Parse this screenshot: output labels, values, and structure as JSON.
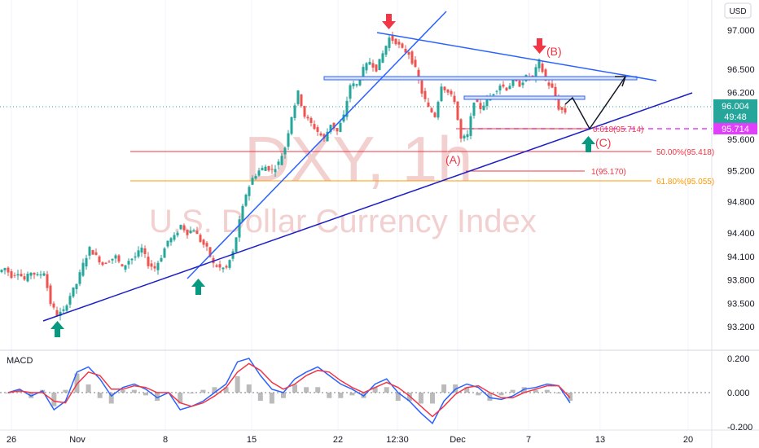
{
  "currency_button": "USD",
  "watermark": {
    "symbol": "DXY, 1h",
    "name": "U.S. Dollar Currency Index"
  },
  "price_axis": {
    "ticks": [
      "97.000",
      "96.500",
      "96.200",
      "95.600",
      "95.200",
      "94.800",
      "94.400",
      "94.100",
      "93.800",
      "93.500",
      "93.200"
    ]
  },
  "time_axis": {
    "ticks": [
      "26",
      "Nov",
      "8",
      "15",
      "22",
      "12:30",
      "Dec",
      "7",
      "13",
      "20"
    ]
  },
  "price_badges": {
    "last_price": "96.004",
    "countdown": "49:48",
    "level_badge": "95.714"
  },
  "annotations": {
    "wave_b": "(B)",
    "wave_a": "(A)",
    "wave_c": "(C)",
    "fib_618": "0.618(95.714)",
    "fib_50": "50.00%(95.418)",
    "fib_1": "1(95.170)",
    "fib_618_pct": "61.80%(95.055)"
  },
  "macd": {
    "title": "MACD",
    "ticks": [
      "0.200",
      "0.000",
      "-0.200"
    ]
  },
  "colors": {
    "up_candle": "#26a69a",
    "down_candle": "#ef5350",
    "trendline": "#2962ff",
    "pink_level": "#e040fb",
    "fib_red": "#f23645",
    "fib_orange": "#ff9800",
    "arrow_up": "#089981",
    "arrow_down": "#f23645"
  },
  "chart_data": {
    "type": "candlestick",
    "title": "U.S. Dollar Currency Index",
    "symbol": "DXY",
    "timeframe": "1h",
    "ylim": [
      93.0,
      97.2
    ],
    "x_ticks": [
      "26",
      "Nov",
      "8",
      "15",
      "22",
      "12:30",
      "Dec",
      "7",
      "13",
      "20"
    ],
    "y_ticks": [
      97.0,
      96.5,
      96.2,
      95.6,
      95.2,
      94.8,
      94.4,
      94.1,
      93.8,
      93.5,
      93.2
    ],
    "last_price": 96.004,
    "levels": [
      {
        "label": "0.618(95.714)",
        "value": 95.714
      },
      {
        "label": "50.00%(95.418)",
        "value": 95.418
      },
      {
        "label": "1(95.170)",
        "value": 95.17
      },
      {
        "label": "61.80%(95.055)",
        "value": 95.055
      }
    ],
    "close_path": [
      [
        0,
        93.9
      ],
      [
        1,
        93.95
      ],
      [
        2,
        93.85
      ],
      [
        3,
        93.9
      ],
      [
        4,
        93.8
      ],
      [
        5,
        93.9
      ],
      [
        6,
        93.85
      ],
      [
        7,
        93.9
      ],
      [
        8,
        93.5
      ],
      [
        9,
        93.35
      ],
      [
        10,
        93.4
      ],
      [
        11,
        93.6
      ],
      [
        12,
        93.75
      ],
      [
        13,
        94.0
      ],
      [
        14,
        94.2
      ],
      [
        15,
        94.1
      ],
      [
        16,
        94.0
      ],
      [
        17,
        94.05
      ],
      [
        18,
        94.1
      ],
      [
        19,
        93.95
      ],
      [
        20,
        94.05
      ],
      [
        21,
        94.1
      ],
      [
        22,
        94.2
      ],
      [
        23,
        94.0
      ],
      [
        24,
        93.95
      ],
      [
        25,
        94.1
      ],
      [
        26,
        94.3
      ],
      [
        27,
        94.35
      ],
      [
        28,
        94.5
      ],
      [
        29,
        94.4
      ],
      [
        30,
        94.45
      ],
      [
        31,
        94.3
      ],
      [
        32,
        94.2
      ],
      [
        33,
        94.0
      ],
      [
        34,
        93.95
      ],
      [
        35,
        93.95
      ],
      [
        36,
        94.15
      ],
      [
        37,
        94.55
      ],
      [
        38,
        94.9
      ],
      [
        39,
        95.1
      ],
      [
        40,
        95.2
      ],
      [
        41,
        95.25
      ],
      [
        42,
        95.2
      ],
      [
        43,
        95.3
      ],
      [
        44,
        95.5
      ],
      [
        45,
        95.9
      ],
      [
        46,
        96.2
      ],
      [
        47,
        95.9
      ],
      [
        48,
        95.8
      ],
      [
        49,
        95.7
      ],
      [
        50,
        95.6
      ],
      [
        51,
        95.8
      ],
      [
        52,
        95.7
      ],
      [
        53,
        95.9
      ],
      [
        54,
        96.3
      ],
      [
        55,
        96.3
      ],
      [
        56,
        96.5
      ],
      [
        57,
        96.6
      ],
      [
        58,
        96.5
      ],
      [
        59,
        96.7
      ],
      [
        60,
        96.9
      ],
      [
        61,
        96.85
      ],
      [
        62,
        96.75
      ],
      [
        63,
        96.7
      ],
      [
        64,
        96.5
      ],
      [
        65,
        96.2
      ],
      [
        66,
        96.0
      ],
      [
        67,
        95.9
      ],
      [
        68,
        96.3
      ],
      [
        69,
        96.2
      ],
      [
        70,
        96.1
      ],
      [
        71,
        95.6
      ],
      [
        72,
        95.65
      ],
      [
        73,
        96.1
      ],
      [
        74,
        96.0
      ],
      [
        75,
        96.1
      ],
      [
        76,
        96.2
      ],
      [
        77,
        96.3
      ],
      [
        78,
        96.25
      ],
      [
        79,
        96.35
      ],
      [
        80,
        96.3
      ],
      [
        81,
        96.4
      ],
      [
        82,
        96.4
      ],
      [
        83,
        96.6
      ],
      [
        84,
        96.35
      ],
      [
        85,
        96.25
      ],
      [
        86,
        96.0
      ],
      [
        87,
        95.95
      ]
    ],
    "projection": [
      [
        88,
        96.1
      ],
      [
        89,
        95.714
      ],
      [
        90,
        96.4
      ]
    ],
    "macd_series": [
      {
        "name": "MACD",
        "values": [
          0.0,
          0.02,
          -0.02,
          0.01,
          -0.1,
          -0.05,
          0.12,
          0.15,
          0.08,
          -0.02,
          0.03,
          0.05,
          0.02,
          -0.03,
          0.0,
          -0.1,
          -0.08,
          -0.05,
          0.0,
          0.05,
          0.18,
          0.2,
          0.1,
          0.02,
          0.0,
          0.08,
          0.12,
          0.15,
          0.1,
          0.05,
          0.02,
          -0.02,
          0.05,
          0.08,
          0.0,
          -0.05,
          -0.12,
          -0.18,
          -0.05,
          0.02,
          0.05,
          0.03,
          -0.03,
          -0.04,
          -0.02,
          0.02,
          0.03,
          0.05,
          0.04,
          -0.06
        ]
      },
      {
        "name": "Signal",
        "values": [
          0.0,
          0.01,
          0.0,
          0.0,
          -0.05,
          -0.06,
          0.05,
          0.12,
          0.1,
          0.02,
          0.02,
          0.04,
          0.03,
          0.0,
          0.0,
          -0.06,
          -0.08,
          -0.06,
          -0.02,
          0.03,
          0.12,
          0.17,
          0.13,
          0.06,
          0.02,
          0.05,
          0.1,
          0.13,
          0.12,
          0.07,
          0.03,
          0.0,
          0.03,
          0.06,
          0.03,
          -0.02,
          -0.08,
          -0.14,
          -0.08,
          -0.01,
          0.03,
          0.04,
          0.0,
          -0.03,
          -0.03,
          0.0,
          0.02,
          0.04,
          0.04,
          -0.03
        ]
      }
    ]
  }
}
